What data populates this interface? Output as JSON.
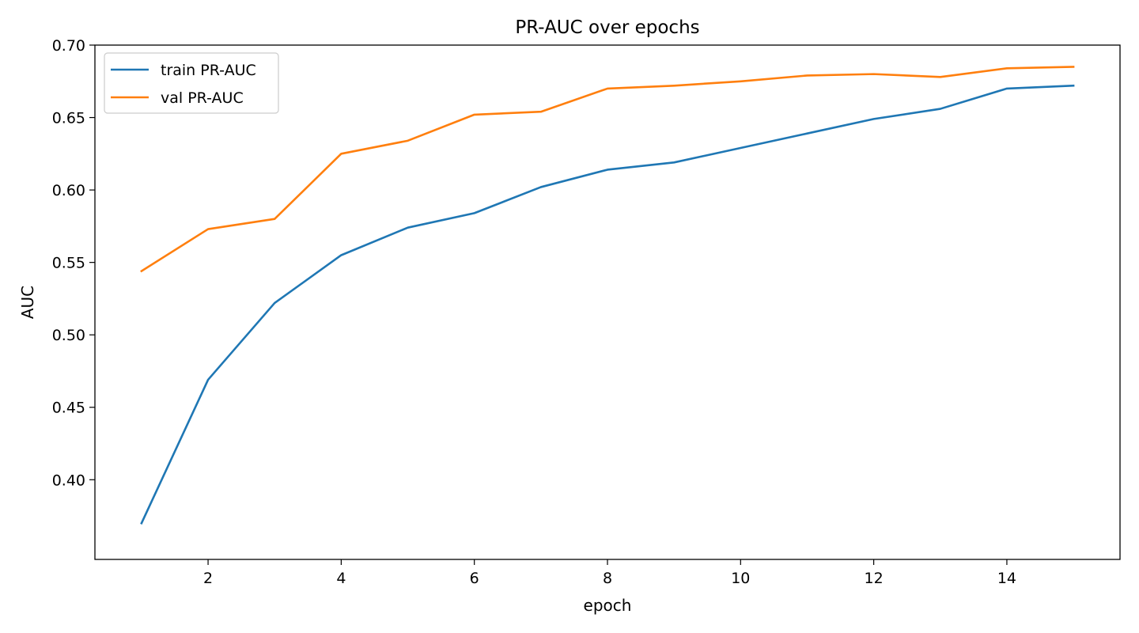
{
  "chart_data": {
    "type": "line",
    "title": "PR-AUC over epochs",
    "xlabel": "epoch",
    "ylabel": "AUC",
    "xlim": [
      0.3,
      15.7
    ],
    "ylim": [
      0.345,
      0.7
    ],
    "xticks": [
      2,
      4,
      6,
      8,
      10,
      12,
      14
    ],
    "yticks": [
      0.4,
      0.45,
      0.5,
      0.55,
      0.6,
      0.65,
      0.7
    ],
    "ytick_labels": [
      "0.40",
      "0.45",
      "0.50",
      "0.55",
      "0.60",
      "0.65",
      "0.70"
    ],
    "grid": false,
    "legend_position": "top-left",
    "x": [
      1,
      2,
      3,
      4,
      5,
      6,
      7,
      8,
      9,
      10,
      11,
      12,
      13,
      14,
      15
    ],
    "series": [
      {
        "name": "train PR-AUC",
        "color": "#1f77b4",
        "values": [
          0.37,
          0.469,
          0.522,
          0.555,
          0.574,
          0.584,
          0.602,
          0.614,
          0.619,
          0.629,
          0.639,
          0.649,
          0.656,
          0.67,
          0.672
        ]
      },
      {
        "name": "val PR-AUC",
        "color": "#ff7f0e",
        "values": [
          0.544,
          0.573,
          0.58,
          0.625,
          0.634,
          0.652,
          0.654,
          0.67,
          0.672,
          0.675,
          0.679,
          0.68,
          0.678,
          0.684,
          0.685
        ]
      }
    ]
  }
}
